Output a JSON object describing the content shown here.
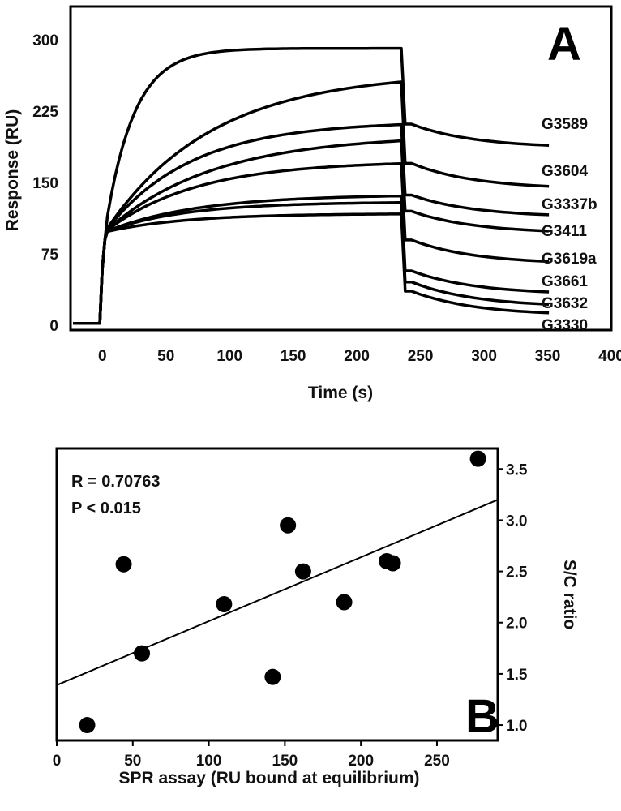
{
  "chart_data": [
    {
      "type": "line",
      "panel_label": "A",
      "xlabel": "Time (s)",
      "ylabel": "Response  (RU)",
      "xlim": [
        -25,
        400
      ],
      "ylim": [
        -5,
        335
      ],
      "x_ticks": [
        "0",
        "50",
        "100",
        "150",
        "200",
        "250",
        "300",
        "350",
        "400"
      ],
      "y_ticks": [
        "0",
        "75",
        "150",
        "225",
        "300"
      ],
      "injection_end_s": 235,
      "series": [
        {
          "name": "G3589",
          "plateau": 291,
          "k_on": 0.045,
          "dissoc_end": 189
        },
        {
          "name": "G3604",
          "plateau": 256,
          "k_on": 0.012,
          "dissoc_end": 146
        },
        {
          "name": "G3337b",
          "plateau": 211,
          "k_on": 0.015,
          "dissoc_end": 116
        },
        {
          "name": "G3411",
          "plateau": 194,
          "k_on": 0.012,
          "dissoc_end": 99
        },
        {
          "name": "G3619a",
          "plateau": 170,
          "k_on": 0.014,
          "dissoc_end": 67
        },
        {
          "name": "G3661",
          "plateau": 136,
          "k_on": 0.014,
          "dissoc_end": 35
        },
        {
          "name": "G3632",
          "plateau": 129,
          "k_on": 0.016,
          "dissoc_end": 22
        },
        {
          "name": "G3330",
          "plateau": 117,
          "k_on": 0.016,
          "dissoc_end": 13
        }
      ]
    },
    {
      "type": "scatter",
      "panel_label": "B",
      "xlabel": "SPR assay (RU bound at equilibrium)",
      "ylabel": "S/C ratio",
      "xlim": [
        0,
        290
      ],
      "ylim": [
        0.85,
        3.7
      ],
      "x_ticks": [
        "0",
        "50",
        "100",
        "150",
        "200",
        "250"
      ],
      "y_ticks": [
        "1.0",
        "1.5",
        "2.0",
        "2.5",
        "3.0",
        "3.5"
      ],
      "annotations": [
        "R = 0.70763",
        "P < 0.015"
      ],
      "points": [
        {
          "x": 20,
          "y": 1.0
        },
        {
          "x": 44,
          "y": 2.57
        },
        {
          "x": 56,
          "y": 1.7
        },
        {
          "x": 110,
          "y": 2.18
        },
        {
          "x": 142,
          "y": 1.47
        },
        {
          "x": 152,
          "y": 2.95
        },
        {
          "x": 162,
          "y": 2.5
        },
        {
          "x": 189,
          "y": 2.2
        },
        {
          "x": 217,
          "y": 2.6
        },
        {
          "x": 221,
          "y": 2.58
        },
        {
          "x": 277,
          "y": 3.6
        }
      ],
      "fit_line": {
        "x": [
          0,
          290
        ],
        "y": [
          1.39,
          3.2
        ]
      }
    }
  ]
}
